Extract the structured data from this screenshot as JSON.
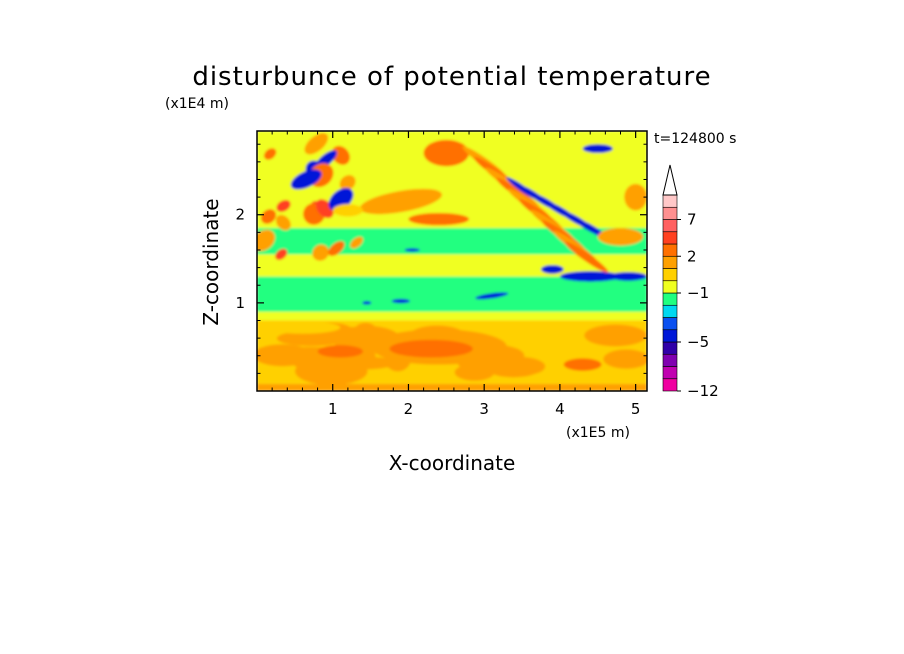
{
  "chart_data": {
    "type": "heatmap",
    "title": "disturbunce of potential temperature",
    "xlabel": "X-coordinate",
    "ylabel": "Z-coordinate",
    "x_unit": "(x1E5 m)",
    "y_unit": "(x1E4 m)",
    "time_label": "t=124800 s",
    "xlim": [
      0,
      5.15
    ],
    "ylim": [
      0,
      2.95
    ],
    "x_ticks": [
      1,
      2,
      3,
      4,
      5
    ],
    "y_ticks": [
      1,
      2
    ],
    "colorbar": {
      "levels": [
        -12,
        -11,
        -9,
        -7,
        -5,
        -4,
        -3,
        -2,
        -1,
        0,
        1,
        2,
        3,
        5,
        7,
        9,
        11
      ],
      "colors": [
        "#f000a0",
        "#c000b0",
        "#8000b0",
        "#3000a8",
        "#0018d8",
        "#0a50f0",
        "#00d8f0",
        "#20ff80",
        "#f0ff20",
        "#ffd000",
        "#ffa000",
        "#ff7000",
        "#ff4020",
        "#ff6060",
        "#ff9090",
        "#ffc8c8"
      ],
      "tick_labels": [
        "7",
        "2",
        "−1",
        "−5",
        "−12"
      ],
      "tick_values": [
        7,
        2,
        -1,
        -5,
        -12
      ],
      "extend": "max"
    }
  }
}
